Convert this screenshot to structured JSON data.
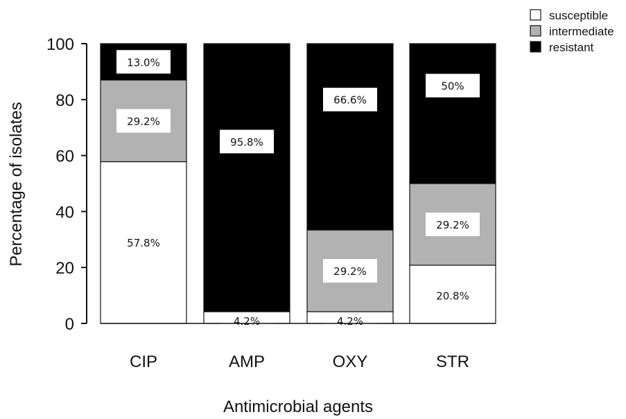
{
  "chart_data": {
    "type": "bar",
    "stacked": true,
    "title": "",
    "xlabel": "Antimicrobial agents",
    "ylabel": "Percentage of isolates",
    "ylim": [
      0,
      100
    ],
    "yticks": [
      "0",
      "20",
      "40",
      "60",
      "80",
      "100"
    ],
    "categories": [
      "CIP",
      "AMP",
      "OXY",
      "STR"
    ],
    "series": [
      {
        "name": "susceptible",
        "color": "#ffffff",
        "values": [
          57.8,
          4.2,
          4.2,
          20.8
        ]
      },
      {
        "name": "intermediate",
        "color": "#b2b2b2",
        "values": [
          29.2,
          0,
          29.2,
          29.2
        ]
      },
      {
        "name": "resistant",
        "color": "#000000",
        "values": [
          13.0,
          95.8,
          66.6,
          50
        ]
      }
    ],
    "data_labels": [
      [
        "57.8%",
        "4.2%",
        "4.2%",
        "20.8%"
      ],
      [
        "29.2%",
        "",
        "29.2%",
        "29.2%"
      ],
      [
        "13.0%",
        "95.8%",
        "66.6%",
        "50%"
      ]
    ],
    "legend_position": "top-right",
    "grid": false
  }
}
